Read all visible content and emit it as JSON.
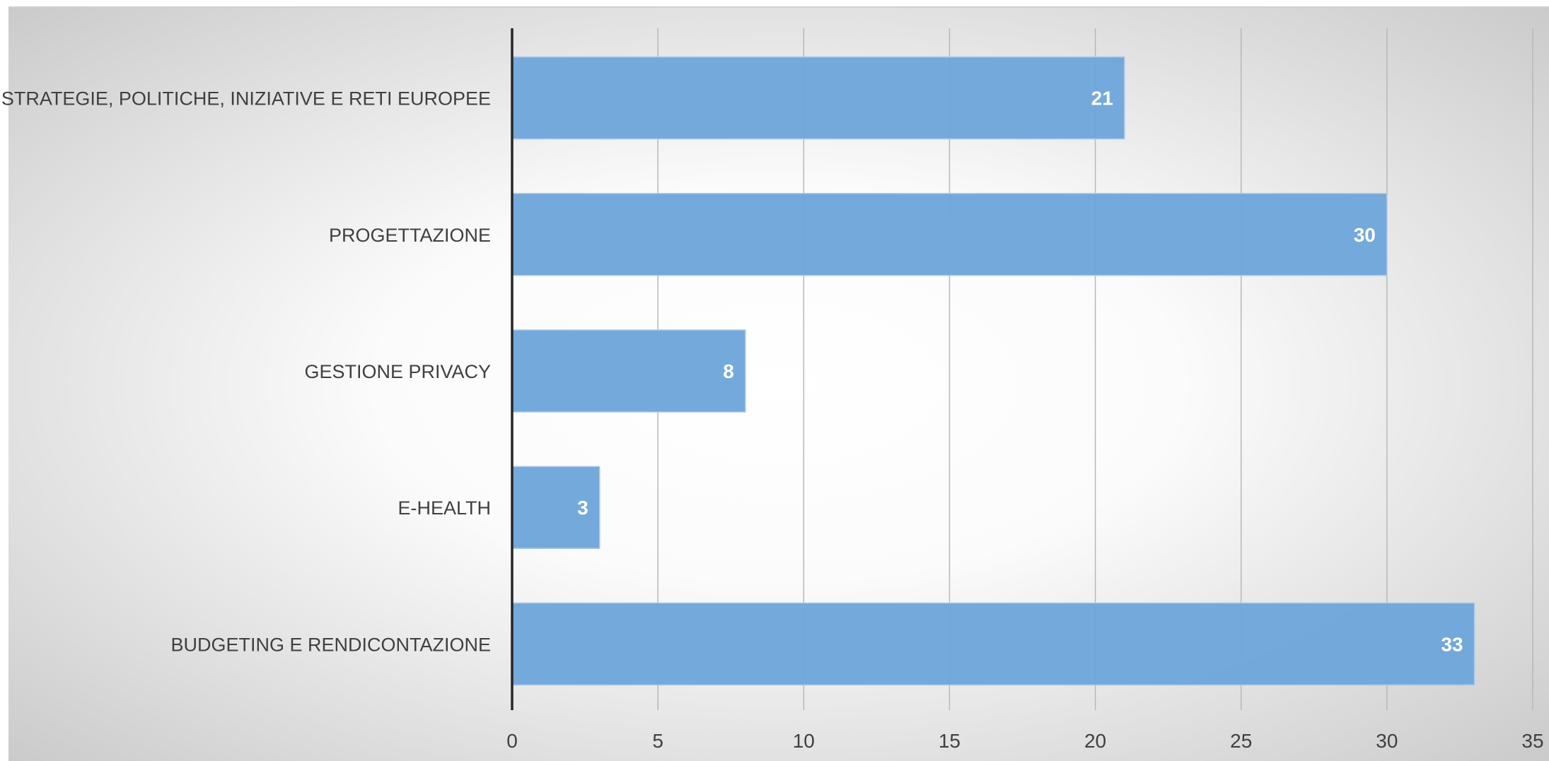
{
  "chart_data": {
    "type": "bar",
    "orientation": "horizontal",
    "categories": [
      "STRATEGIE, POLITICHE, INIZIATIVE E RETI EUROPEE",
      "PROGETTAZIONE",
      "GESTIONE PRIVACY",
      "E-HEALTH",
      "BUDGETING E RENDICONTAZIONE"
    ],
    "values": [
      21,
      30,
      8,
      3,
      33
    ],
    "data_labels": [
      "21",
      "30",
      "8",
      "3",
      "33"
    ],
    "xlim": [
      0,
      35
    ],
    "x_ticks": [
      "0",
      "5",
      "10",
      "15",
      "20",
      "25",
      "30",
      "35"
    ],
    "title": "",
    "xlabel": "",
    "ylabel": "",
    "grid": "vertical",
    "legend": "none",
    "colors": {
      "bar": "#6fa6da",
      "bar_label": "#ffffff",
      "axis_text": "#404040",
      "gridline": "#b8b8b8",
      "axis_line": "#262626",
      "background_center": "#ffffff",
      "background_edge": "#c6c6c6"
    }
  }
}
